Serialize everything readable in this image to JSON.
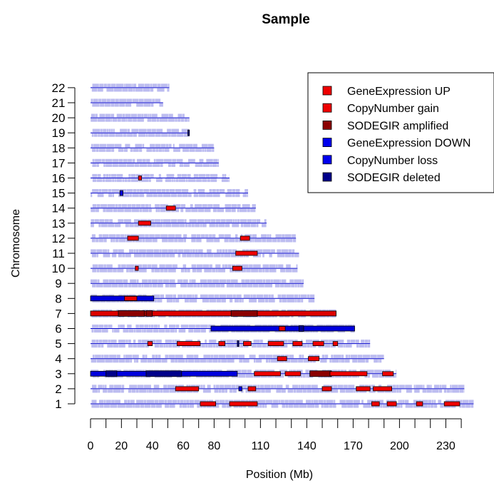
{
  "chart_data": {
    "type": "genome-track",
    "title": "Sample",
    "xlabel": "Position (Mb)",
    "ylabel": "Chromosome",
    "xlim": [
      0,
      245
    ],
    "x_ticks": [
      0,
      20,
      40,
      60,
      80,
      110,
      140,
      170,
      200,
      230
    ],
    "x_minor_ticks": [
      10,
      30,
      50,
      70,
      90,
      100,
      120,
      130,
      150,
      160,
      180,
      190,
      210,
      220,
      240
    ],
    "chromosomes": [
      "1",
      "2",
      "3",
      "4",
      "5",
      "6",
      "7",
      "8",
      "9",
      "10",
      "11",
      "12",
      "13",
      "14",
      "15",
      "16",
      "17",
      "18",
      "19",
      "20",
      "21",
      "22"
    ],
    "chromosome_lengths_mb": [
      248,
      242,
      198,
      190,
      181,
      171,
      159,
      145,
      138,
      134,
      135,
      133,
      114,
      107,
      102,
      90,
      83,
      80,
      64,
      64,
      47,
      51
    ],
    "probe_color": "#bdbdf0",
    "baseline_color": "#0000cc",
    "legend": {
      "position": "top-right",
      "entries": [
        {
          "label": "GeneExpression UP",
          "color": "#ee0000"
        },
        {
          "label": "CopyNumber gain",
          "color": "#ee0000"
        },
        {
          "label": "SODEGIR amplified",
          "color": "#8b0000"
        },
        {
          "label": "GeneExpression DOWN",
          "color": "#0000ee"
        },
        {
          "label": "CopyNumber loss",
          "color": "#0000ee"
        },
        {
          "label": "SODEGIR deleted",
          "color": "#00008b"
        }
      ]
    },
    "segments": [
      {
        "chr": "1",
        "start": 71,
        "end": 81,
        "type": "up"
      },
      {
        "chr": "1",
        "start": 90,
        "end": 108,
        "type": "up"
      },
      {
        "chr": "1",
        "start": 182,
        "end": 187,
        "type": "up"
      },
      {
        "chr": "1",
        "start": 192,
        "end": 198,
        "type": "up"
      },
      {
        "chr": "1",
        "start": 211,
        "end": 215,
        "type": "up"
      },
      {
        "chr": "1",
        "start": 229,
        "end": 239,
        "type": "up"
      },
      {
        "chr": "2",
        "start": 55,
        "end": 70,
        "type": "up"
      },
      {
        "chr": "2",
        "start": 96,
        "end": 98,
        "type": "down"
      },
      {
        "chr": "2",
        "start": 102,
        "end": 107,
        "type": "up"
      },
      {
        "chr": "2",
        "start": 150,
        "end": 156,
        "type": "up"
      },
      {
        "chr": "2",
        "start": 172,
        "end": 181,
        "type": "up"
      },
      {
        "chr": "2",
        "start": 183,
        "end": 195,
        "type": "up"
      },
      {
        "chr": "3",
        "start": 0,
        "end": 95,
        "type": "loss"
      },
      {
        "chr": "3",
        "start": 10,
        "end": 17,
        "type": "sod_del"
      },
      {
        "chr": "3",
        "start": 36,
        "end": 59,
        "type": "sod_del"
      },
      {
        "chr": "3",
        "start": 106,
        "end": 123,
        "type": "up"
      },
      {
        "chr": "3",
        "start": 126,
        "end": 136,
        "type": "up"
      },
      {
        "chr": "3",
        "start": 142,
        "end": 156,
        "type": "sod_amp"
      },
      {
        "chr": "3",
        "start": 142,
        "end": 156,
        "type": "gain"
      },
      {
        "chr": "3",
        "start": 155,
        "end": 179,
        "type": "up"
      },
      {
        "chr": "3",
        "start": 189,
        "end": 196,
        "type": "up"
      },
      {
        "chr": "4",
        "start": 121,
        "end": 127,
        "type": "up"
      },
      {
        "chr": "4",
        "start": 141,
        "end": 148,
        "type": "up"
      },
      {
        "chr": "5",
        "start": 37,
        "end": 40,
        "type": "up"
      },
      {
        "chr": "5",
        "start": 56,
        "end": 71,
        "type": "up"
      },
      {
        "chr": "5",
        "start": 83,
        "end": 87,
        "type": "up"
      },
      {
        "chr": "5",
        "start": 95,
        "end": 96,
        "type": "sod_del"
      },
      {
        "chr": "5",
        "start": 99,
        "end": 104,
        "type": "up"
      },
      {
        "chr": "5",
        "start": 115,
        "end": 125,
        "type": "up"
      },
      {
        "chr": "5",
        "start": 131,
        "end": 137,
        "type": "up"
      },
      {
        "chr": "5",
        "start": 144,
        "end": 151,
        "type": "up"
      },
      {
        "chr": "5",
        "start": 157,
        "end": 160,
        "type": "up"
      },
      {
        "chr": "6",
        "start": 78,
        "end": 171,
        "type": "loss"
      },
      {
        "chr": "6",
        "start": 122,
        "end": 126,
        "type": "up"
      },
      {
        "chr": "6",
        "start": 135,
        "end": 138,
        "type": "sod_del"
      },
      {
        "chr": "7",
        "start": 0,
        "end": 159,
        "type": "gain"
      },
      {
        "chr": "7",
        "start": 18,
        "end": 35,
        "type": "sod_amp"
      },
      {
        "chr": "7",
        "start": 36,
        "end": 40,
        "type": "sod_amp"
      },
      {
        "chr": "7",
        "start": 91,
        "end": 108,
        "type": "sod_amp"
      },
      {
        "chr": "8",
        "start": 0,
        "end": 41,
        "type": "loss"
      },
      {
        "chr": "8",
        "start": 22,
        "end": 30,
        "type": "up"
      },
      {
        "chr": "10",
        "start": 92,
        "end": 98,
        "type": "up"
      },
      {
        "chr": "10",
        "start": 29,
        "end": 31,
        "type": "up"
      },
      {
        "chr": "11",
        "start": 94,
        "end": 108,
        "type": "up"
      },
      {
        "chr": "12",
        "start": 24,
        "end": 31,
        "type": "up"
      },
      {
        "chr": "12",
        "start": 97,
        "end": 103,
        "type": "up"
      },
      {
        "chr": "13",
        "start": 31,
        "end": 39,
        "type": "up"
      },
      {
        "chr": "14",
        "start": 49,
        "end": 55,
        "type": "up"
      },
      {
        "chr": "15",
        "start": 19,
        "end": 21,
        "type": "loss"
      },
      {
        "chr": "16",
        "start": 31,
        "end": 33,
        "type": "up"
      },
      {
        "chr": "19",
        "start": 63,
        "end": 64,
        "type": "sod_del"
      }
    ]
  }
}
